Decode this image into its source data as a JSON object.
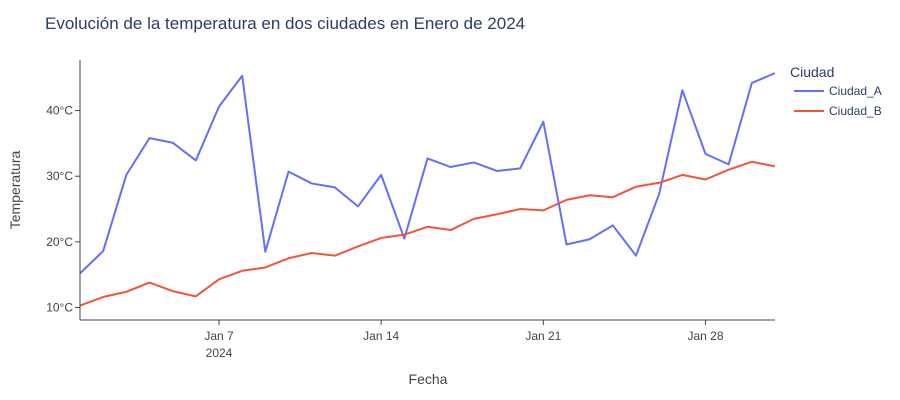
{
  "chart_data": {
    "type": "line",
    "title": "Evolución de la temperatura en dos ciudades en Enero de 2024",
    "xlabel": "Fecha",
    "ylabel": "Temperatura",
    "x": [
      "2024-01-01",
      "2024-01-02",
      "2024-01-03",
      "2024-01-04",
      "2024-01-05",
      "2024-01-06",
      "2024-01-07",
      "2024-01-08",
      "2024-01-09",
      "2024-01-10",
      "2024-01-11",
      "2024-01-12",
      "2024-01-13",
      "2024-01-14",
      "2024-01-15",
      "2024-01-16",
      "2024-01-17",
      "2024-01-18",
      "2024-01-19",
      "2024-01-20",
      "2024-01-21",
      "2024-01-22",
      "2024-01-23",
      "2024-01-24",
      "2024-01-25",
      "2024-01-26",
      "2024-01-27",
      "2024-01-28",
      "2024-01-29",
      "2024-01-30",
      "2024-01-31"
    ],
    "series": [
      {
        "name": "Ciudad_A",
        "color": "#636efa",
        "values": [
          15.2,
          18.6,
          30.2,
          35.8,
          35.1,
          32.4,
          40.6,
          45.3,
          18.5,
          30.7,
          28.9,
          28.3,
          25.4,
          30.2,
          20.5,
          32.7,
          31.4,
          32.1,
          30.8,
          31.2,
          38.3,
          19.6,
          20.4,
          22.5,
          17.9,
          27.3,
          43.1,
          33.4,
          31.8,
          44.2,
          45.7
        ]
      },
      {
        "name": "Ciudad_B",
        "color": "#ef553b",
        "values": [
          10.3,
          11.6,
          12.4,
          13.8,
          12.5,
          11.7,
          14.3,
          15.6,
          16.1,
          17.5,
          18.3,
          17.9,
          19.3,
          20.6,
          21.1,
          22.3,
          21.8,
          23.5,
          24.2,
          25.0,
          24.8,
          26.4,
          27.1,
          26.8,
          28.4,
          29.0,
          30.2,
          29.5,
          31.0,
          32.2,
          31.5
        ]
      }
    ],
    "ylim": [
      8.1,
      47.7
    ],
    "yticks": [
      10,
      20,
      30,
      40
    ],
    "ytick_labels": [
      "10°C",
      "20°C",
      "30°C",
      "40°C"
    ],
    "xticks": [
      "2024-01-07",
      "2024-01-14",
      "2024-01-21",
      "2024-01-28"
    ],
    "xtick_labels": [
      "Jan 7",
      "Jan 14",
      "Jan 21",
      "Jan 28"
    ],
    "xtick_year_label": "2024",
    "legend_title": "Ciudad",
    "legend_position": "top-right",
    "grid": false
  }
}
